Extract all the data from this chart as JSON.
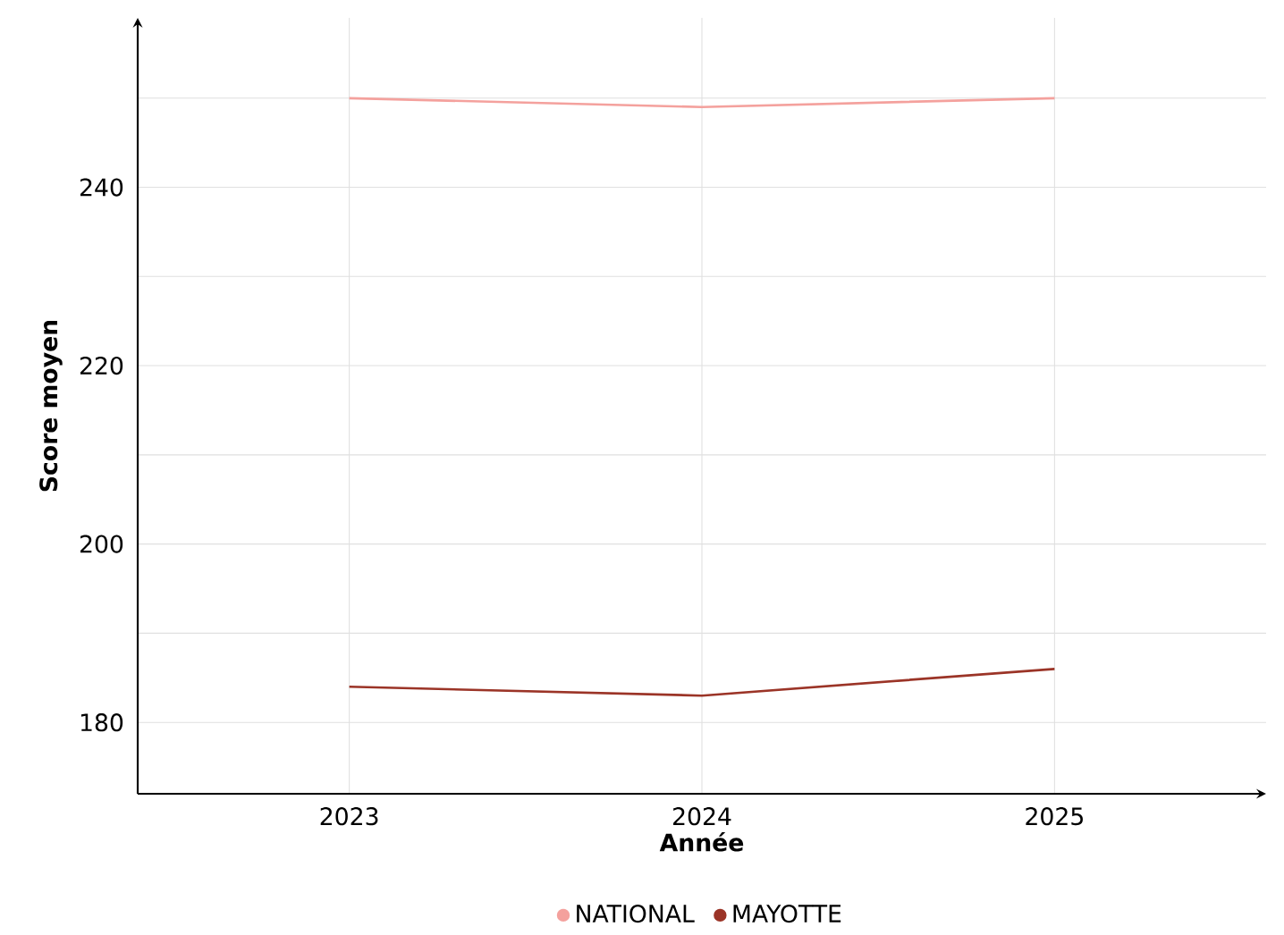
{
  "chart_data": {
    "type": "line",
    "xlabel": "Année",
    "ylabel": "Score moyen",
    "x": [
      2023,
      2024,
      2025
    ],
    "series": [
      {
        "name": "NATIONAL",
        "color": "#f4a19d",
        "values": [
          250,
          249,
          250
        ]
      },
      {
        "name": "MAYOTTE",
        "color": "#9b3427",
        "values": [
          184,
          183,
          186
        ]
      }
    ],
    "xlim": [
      2022.4,
      2025.6
    ],
    "ylim": [
      172,
      259
    ],
    "xticks": [
      2023,
      2024,
      2025
    ],
    "yticks": [
      180,
      {
        "value": 190,
        "label": null
      },
      200,
      {
        "value": 210,
        "label": null
      },
      220,
      {
        "value": 230,
        "label": null
      },
      240,
      {
        "value": 250,
        "label": null
      }
    ],
    "grid": true,
    "legend": "bottom",
    "marker": "none",
    "line_style": "solid"
  }
}
